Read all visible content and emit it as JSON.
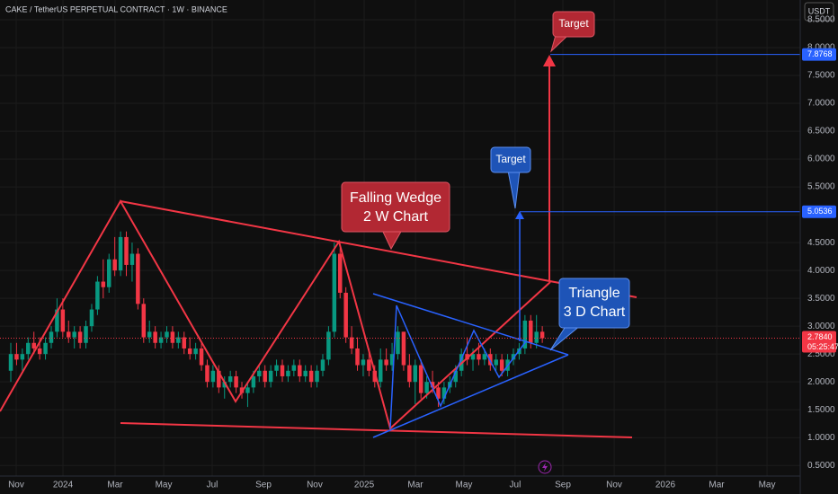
{
  "chart_data": {
    "type": "candlestick",
    "title": "CAKE / TetherUS PERPETUAL CONTRACT · 1W · BINANCE",
    "currency": "USDT",
    "open": [
      2.2,
      2.5,
      2.4,
      2.5,
      2.7,
      2.6,
      2.5,
      2.7,
      2.9,
      3.3,
      2.9,
      2.8,
      2.9,
      2.7,
      3.0,
      3.3,
      3.8,
      3.7,
      4.2,
      4.0,
      4.6,
      4.1,
      4.3,
      3.4,
      2.8,
      2.9,
      2.7,
      2.8,
      2.9,
      2.7,
      2.8,
      2.6,
      2.5,
      2.6,
      2.3,
      2.0,
      2.2,
      1.9,
      2.0,
      2.1,
      1.9,
      1.8,
      1.9,
      2.1,
      2.2,
      2.0,
      2.2,
      2.3,
      2.1,
      2.2,
      2.3,
      2.1,
      2.2,
      2.0,
      2.2,
      2.4,
      2.9,
      4.3,
      3.6,
      2.8,
      2.6,
      2.3,
      2.4,
      2.2,
      2.0,
      2.4,
      2.3,
      2.5,
      2.9,
      2.3,
      2.0,
      2.3,
      1.8,
      2.0,
      1.9,
      1.7,
      1.9,
      2.0,
      2.2,
      2.5,
      2.4,
      2.5,
      2.4,
      2.5,
      2.3,
      2.4,
      2.2,
      2.4,
      2.5,
      2.6,
      3.1,
      2.7,
      2.9
    ],
    "high": [
      2.7,
      2.7,
      2.6,
      2.8,
      2.9,
      2.8,
      2.8,
      3.0,
      3.5,
      3.5,
      3.1,
      3.0,
      3.0,
      3.1,
      3.4,
      3.9,
      4.2,
      4.3,
      4.6,
      4.7,
      4.7,
      4.5,
      4.4,
      3.5,
      3.1,
      3.0,
      2.9,
      3.0,
      3.0,
      2.9,
      2.9,
      2.8,
      2.7,
      2.7,
      2.4,
      2.3,
      2.3,
      2.1,
      2.2,
      2.2,
      2.0,
      2.0,
      2.2,
      2.3,
      2.3,
      2.3,
      2.4,
      2.4,
      2.3,
      2.4,
      2.4,
      2.3,
      2.3,
      2.3,
      2.5,
      3.0,
      4.5,
      4.4,
      3.7,
      3.0,
      2.8,
      2.5,
      2.6,
      2.3,
      2.6,
      2.6,
      2.7,
      3.0,
      2.9,
      2.5,
      2.4,
      2.4,
      2.1,
      2.2,
      2.0,
      2.0,
      2.1,
      2.3,
      2.6,
      2.8,
      2.6,
      2.7,
      2.6,
      2.6,
      2.5,
      2.5,
      2.5,
      2.6,
      2.7,
      3.2,
      3.2,
      3.2,
      3.0
    ],
    "low": [
      2.0,
      2.3,
      2.2,
      2.4,
      2.5,
      2.4,
      2.4,
      2.6,
      2.8,
      2.8,
      2.7,
      2.6,
      2.6,
      2.6,
      2.9,
      3.2,
      3.5,
      3.6,
      3.9,
      3.9,
      3.9,
      3.8,
      3.3,
      2.7,
      2.7,
      2.6,
      2.6,
      2.7,
      2.6,
      2.6,
      2.5,
      2.4,
      2.4,
      2.2,
      1.9,
      1.9,
      1.8,
      1.7,
      1.9,
      1.8,
      1.7,
      1.55,
      1.8,
      2.0,
      1.9,
      1.9,
      2.1,
      2.0,
      2.0,
      2.1,
      2.0,
      2.0,
      1.9,
      1.9,
      2.1,
      2.3,
      2.8,
      3.5,
      2.7,
      2.5,
      2.2,
      2.1,
      2.1,
      1.9,
      1.9,
      2.2,
      2.2,
      2.4,
      2.2,
      1.9,
      1.6,
      1.7,
      1.7,
      1.8,
      1.55,
      1.6,
      1.8,
      1.9,
      2.1,
      2.3,
      2.2,
      2.3,
      2.3,
      2.2,
      2.2,
      2.1,
      2.1,
      2.3,
      2.4,
      2.5,
      2.6,
      2.6,
      2.7
    ],
    "close": [
      2.5,
      2.4,
      2.5,
      2.7,
      2.6,
      2.5,
      2.7,
      2.9,
      3.3,
      2.9,
      2.8,
      2.9,
      2.7,
      3.0,
      3.3,
      3.8,
      3.7,
      4.2,
      4.0,
      4.6,
      4.1,
      4.3,
      3.4,
      2.8,
      2.9,
      2.7,
      2.8,
      2.9,
      2.7,
      2.8,
      2.6,
      2.5,
      2.6,
      2.3,
      2.0,
      2.2,
      1.9,
      2.0,
      2.1,
      1.9,
      1.8,
      1.9,
      2.1,
      2.2,
      2.0,
      2.2,
      2.3,
      2.1,
      2.2,
      2.3,
      2.1,
      2.2,
      2.0,
      2.2,
      2.4,
      2.9,
      4.3,
      3.6,
      2.8,
      2.6,
      2.3,
      2.4,
      2.2,
      2.0,
      2.4,
      2.3,
      2.5,
      2.9,
      2.3,
      2.0,
      2.3,
      1.8,
      2.0,
      1.9,
      1.7,
      1.9,
      2.0,
      2.2,
      2.5,
      2.4,
      2.5,
      2.4,
      2.5,
      2.3,
      2.4,
      2.2,
      2.4,
      2.5,
      2.6,
      3.1,
      2.7,
      2.9,
      2.784
    ],
    "up_color": "#089981",
    "down_color": "#f23645",
    "ylim": [
      0.31,
      8.855
    ],
    "yticks": [
      {
        "value": 0.5,
        "label": "0.5000"
      },
      {
        "value": 1,
        "label": "1.0000"
      },
      {
        "value": 1.5,
        "label": "1.5000"
      },
      {
        "value": 2,
        "label": "2.0000"
      },
      {
        "value": 2.5,
        "label": "2.5000"
      },
      {
        "value": 3,
        "label": "3.0000"
      },
      {
        "value": 3.5,
        "label": "3.5000"
      },
      {
        "value": 4,
        "label": "4.0000"
      },
      {
        "value": 4.5,
        "label": "4.5000"
      },
      {
        "value": 5,
        "label": "5.0000"
      },
      {
        "value": 5.5,
        "label": "5.5000"
      },
      {
        "value": 6,
        "label": "6.0000"
      },
      {
        "value": 6.5,
        "label": "6.5000"
      },
      {
        "value": 7,
        "label": "7.0000"
      },
      {
        "value": 7.5,
        "label": "7.5000"
      },
      {
        "value": 8,
        "label": "8.0000"
      },
      {
        "value": 8.5,
        "label": "8.5000"
      }
    ],
    "xlim": [
      -1.87,
      136.65
    ],
    "xticks": [
      {
        "value": 0.93,
        "label": "Nov"
      },
      {
        "value": 9.03,
        "label": "2024"
      },
      {
        "value": 18.05,
        "label": "Mar"
      },
      {
        "value": 26.46,
        "label": "May"
      },
      {
        "value": 34.86,
        "label": "Jul"
      },
      {
        "value": 43.74,
        "label": "Sep"
      },
      {
        "value": 52.6,
        "label": "Nov"
      },
      {
        "value": 61.17,
        "label": "2025"
      },
      {
        "value": 70.04,
        "label": "Mar"
      },
      {
        "value": 78.44,
        "label": "May"
      },
      {
        "value": 87.3,
        "label": "Jul"
      },
      {
        "value": 95.56,
        "label": "Sep"
      },
      {
        "value": 104.44,
        "label": "Nov"
      },
      {
        "value": 113.3,
        "label": "2026"
      },
      {
        "value": 122.18,
        "label": "Mar"
      },
      {
        "value": 130.9,
        "label": "May"
      }
    ],
    "grid": true,
    "last_price": {
      "value": 2.784,
      "label": "2.7840"
    },
    "countdown": "05:25:47",
    "target_levels": [
      7.8768,
      5.0536
    ],
    "target_color": "#2962ff",
    "annotations": [
      {
        "lines": [
          "Falling Wedge",
          "2 W Chart"
        ]
      },
      {
        "lines": [
          "Target"
        ]
      },
      {
        "lines": [
          "Target"
        ]
      },
      {
        "lines": [
          "Triangle",
          "3 D Chart"
        ]
      }
    ]
  }
}
